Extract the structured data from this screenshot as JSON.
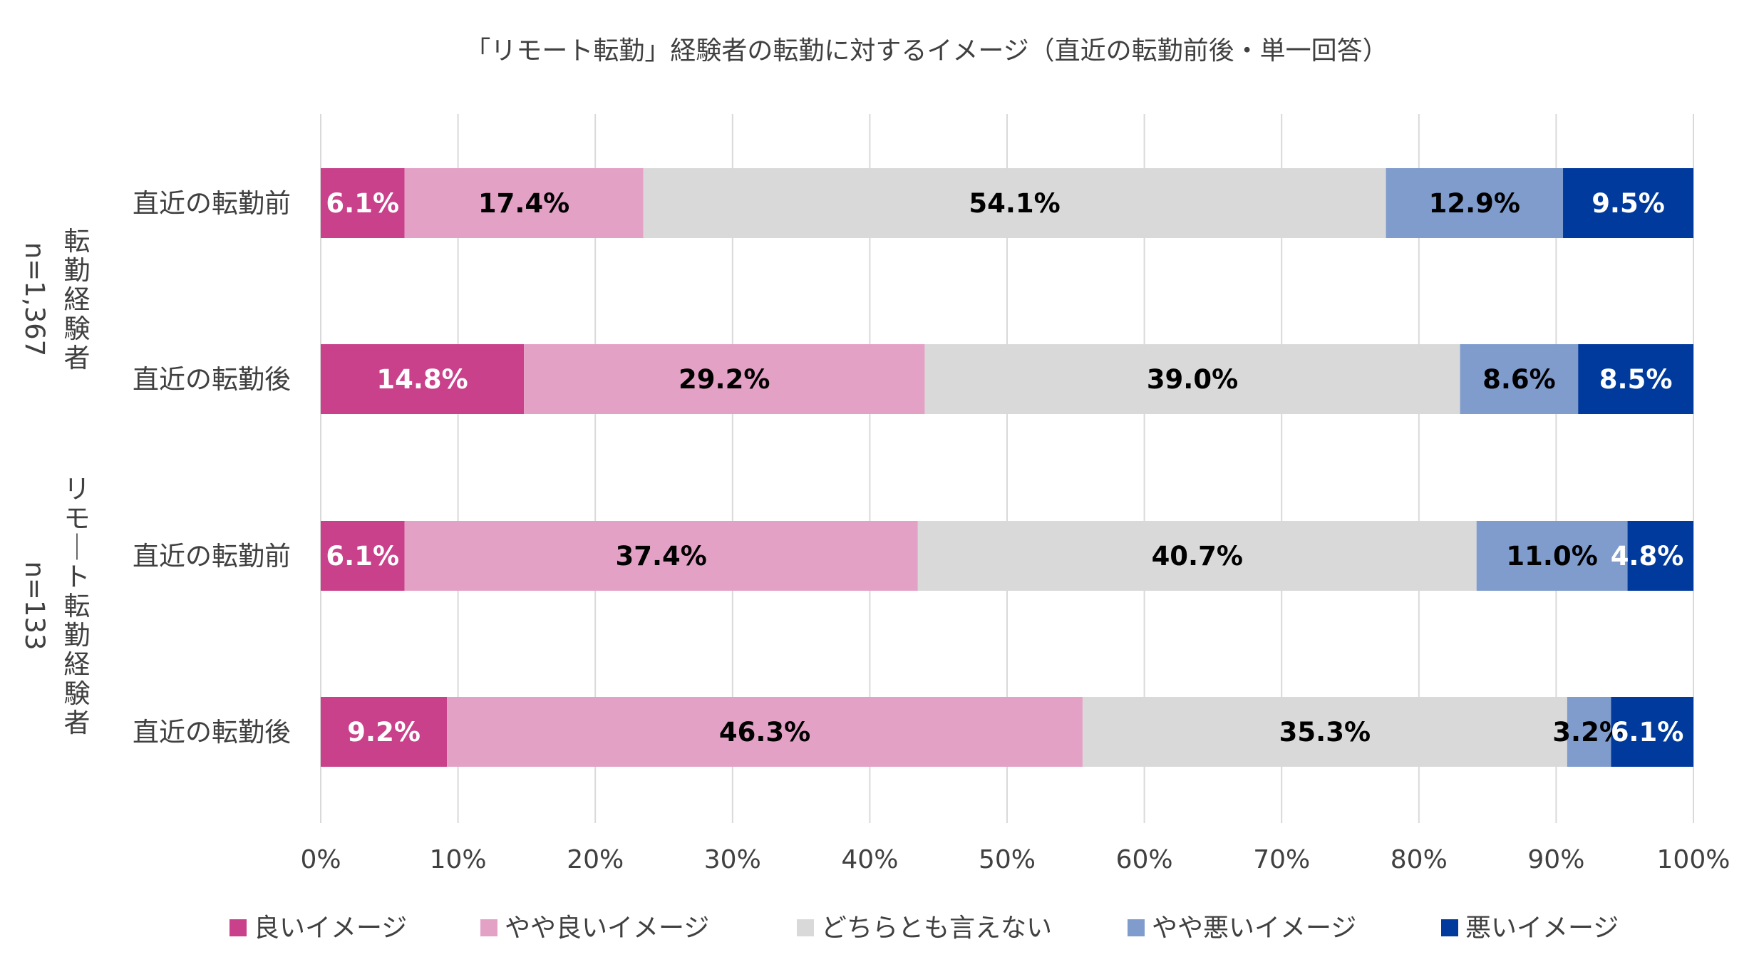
{
  "chart_data": {
    "type": "bar",
    "orientation": "horizontal",
    "stacked": "100%",
    "title": "「リモート転勤」経験者の転勤に対するイメージ（直近の転勤前後・単一回答）",
    "groups": [
      {
        "name": "転勤経験者",
        "n": "n=1,367",
        "rows": [
          "直近の転勤前",
          "直近の転勤後"
        ]
      },
      {
        "name": "リモート転勤経験者",
        "n": "n=133",
        "rows": [
          "直近の転勤前",
          "直近の転勤後"
        ]
      }
    ],
    "categories": [
      "直近の転勤前",
      "直近の転勤後",
      "直近の転勤前",
      "直近の転勤後"
    ],
    "series": [
      {
        "name": "良いイメージ",
        "color": "#c8418a",
        "label_color": "#ffffff",
        "values": [
          6.1,
          14.8,
          6.1,
          9.2
        ]
      },
      {
        "name": "やや良いイメージ",
        "color": "#e4a1c6",
        "label_color": "#000000",
        "values": [
          17.4,
          29.2,
          37.4,
          46.3
        ]
      },
      {
        "name": "どちらとも言えない",
        "color": "#d9d9d9",
        "label_color": "#000000",
        "values": [
          54.1,
          39.0,
          40.7,
          35.3
        ]
      },
      {
        "name": "やや悪いイメージ",
        "color": "#7f9ccd",
        "label_color": "#000000",
        "values": [
          12.9,
          8.6,
          11.0,
          3.2
        ]
      },
      {
        "name": "悪いイメージ",
        "color": "#003a9c",
        "label_color": "#ffffff",
        "values": [
          9.5,
          8.5,
          4.8,
          6.1
        ]
      }
    ],
    "xlim": [
      0,
      100
    ],
    "xticks": [
      "0%",
      "10%",
      "20%",
      "30%",
      "40%",
      "50%",
      "60%",
      "70%",
      "80%",
      "90%",
      "100%"
    ],
    "grid": true,
    "legend_position": "bottom"
  }
}
